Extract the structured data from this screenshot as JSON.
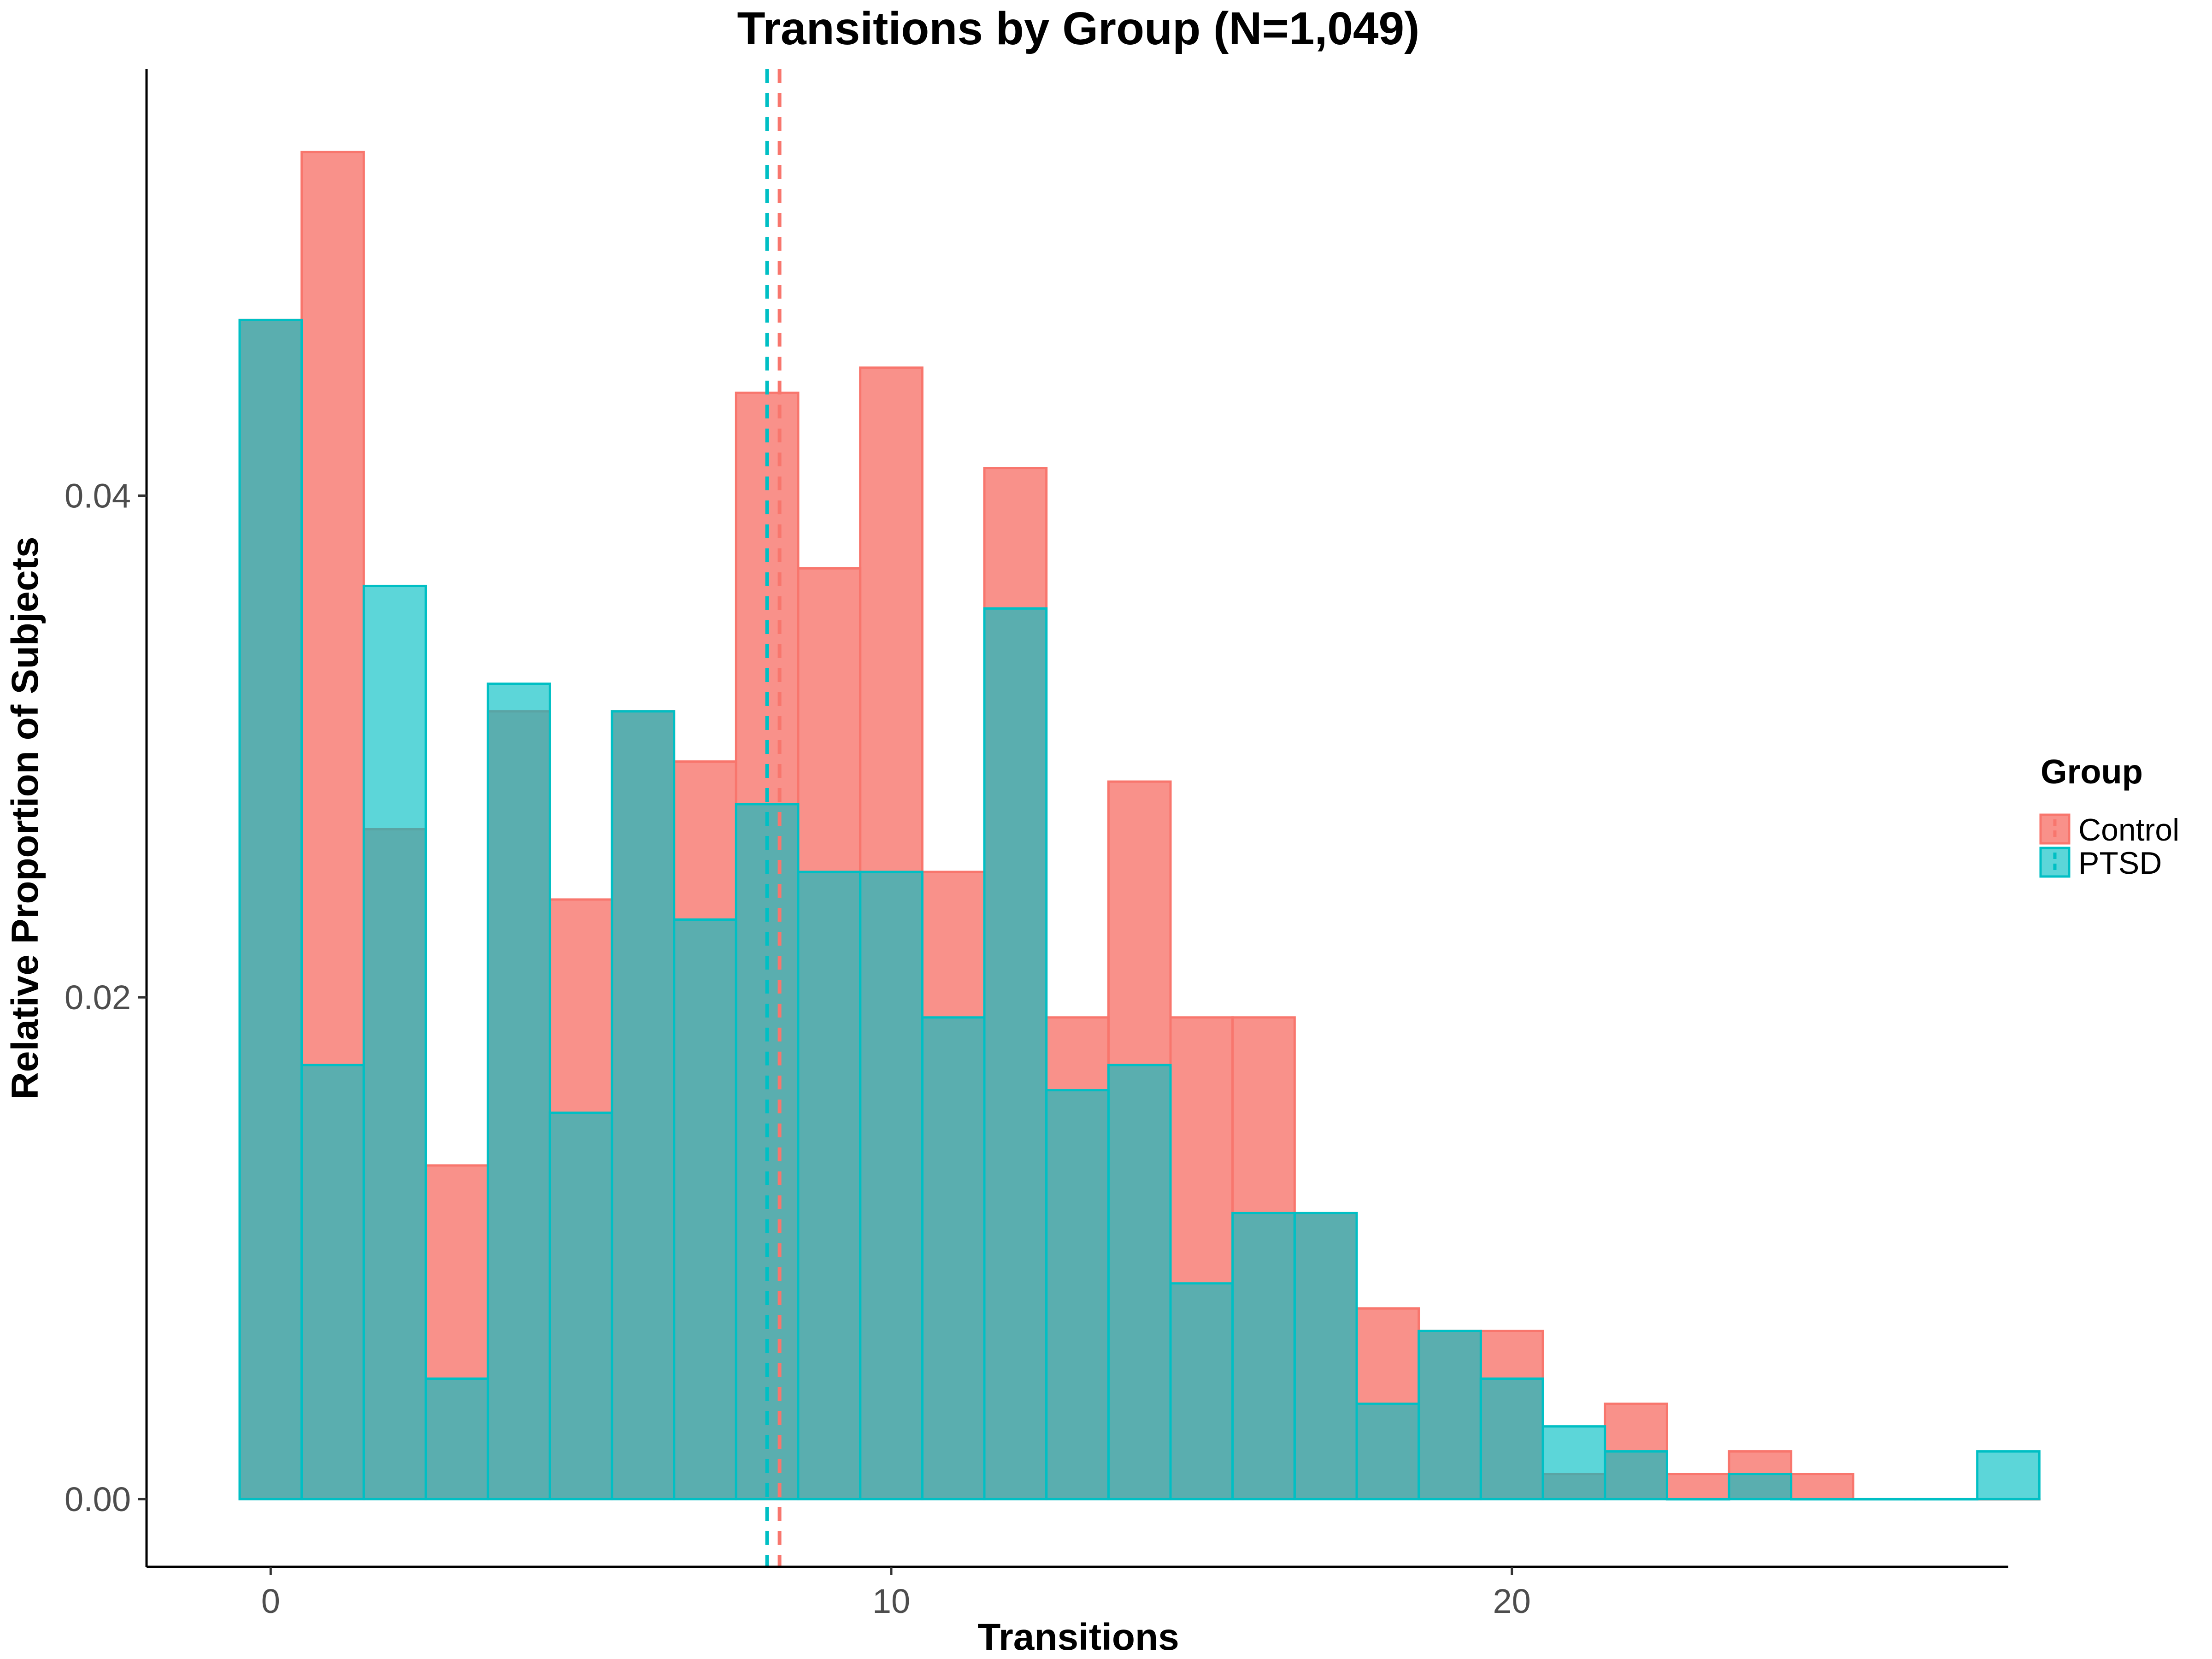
{
  "chart_data": {
    "type": "bar",
    "subtype": "overlaid-histogram",
    "title": "Transitions by Group (N=1,049)",
    "xlabel": "Transitions",
    "ylabel": "Relative Proportion of Subjects",
    "xlim": [
      -2,
      28
    ],
    "ylim": [
      -0.0027,
      0.057
    ],
    "xticks": [
      0,
      10,
      20
    ],
    "xtick_labels": [
      "0",
      "10",
      "20"
    ],
    "yticks": [
      0,
      0.02,
      0.04
    ],
    "ytick_labels": [
      "0.00",
      "0.02",
      "0.04"
    ],
    "bin_width": 1,
    "bin_centers": [
      0,
      1,
      2,
      3,
      4,
      5,
      6,
      7,
      8,
      9,
      10,
      11,
      12,
      13,
      14,
      15,
      16,
      17,
      18,
      19,
      20,
      21,
      22,
      23,
      24,
      25,
      26,
      27,
      28
    ],
    "grid": false,
    "legend": {
      "title": "Group",
      "position": "right"
    },
    "series": [
      {
        "name": "Control",
        "color": "#F8766D",
        "fill_opacity": 0.8,
        "values": [
          0.047,
          0.0537,
          0.0267,
          0.0133,
          0.0314,
          0.0239,
          0.0314,
          0.0294,
          0.0441,
          0.0371,
          0.0451,
          0.025,
          0.0411,
          0.0192,
          0.0286,
          0.0192,
          0.0192,
          0.0114,
          0.0076,
          0.0067,
          0.0067,
          0.001,
          0.0038,
          0.001,
          0.0019,
          0.001,
          0,
          0,
          0
        ],
        "mean": 8.2
      },
      {
        "name": "PTSD",
        "color": "#00BFC4",
        "fill_opacity": 0.64,
        "values": [
          0.047,
          0.0173,
          0.0364,
          0.0048,
          0.0325,
          0.0154,
          0.0314,
          0.0231,
          0.0277,
          0.025,
          0.025,
          0.0192,
          0.0355,
          0.0163,
          0.0173,
          0.0086,
          0.0114,
          0.0114,
          0.0038,
          0.0067,
          0.0048,
          0.0029,
          0.0019,
          0,
          0.001,
          0,
          0,
          0,
          0.0019
        ],
        "mean": 8.0
      }
    ],
    "reference_lines": [
      {
        "series": "PTSD",
        "x": 8.0,
        "style": "dashed",
        "color": "#00BFC4"
      },
      {
        "series": "Control",
        "x": 8.2,
        "style": "dashed",
        "color": "#F8766D"
      }
    ]
  }
}
